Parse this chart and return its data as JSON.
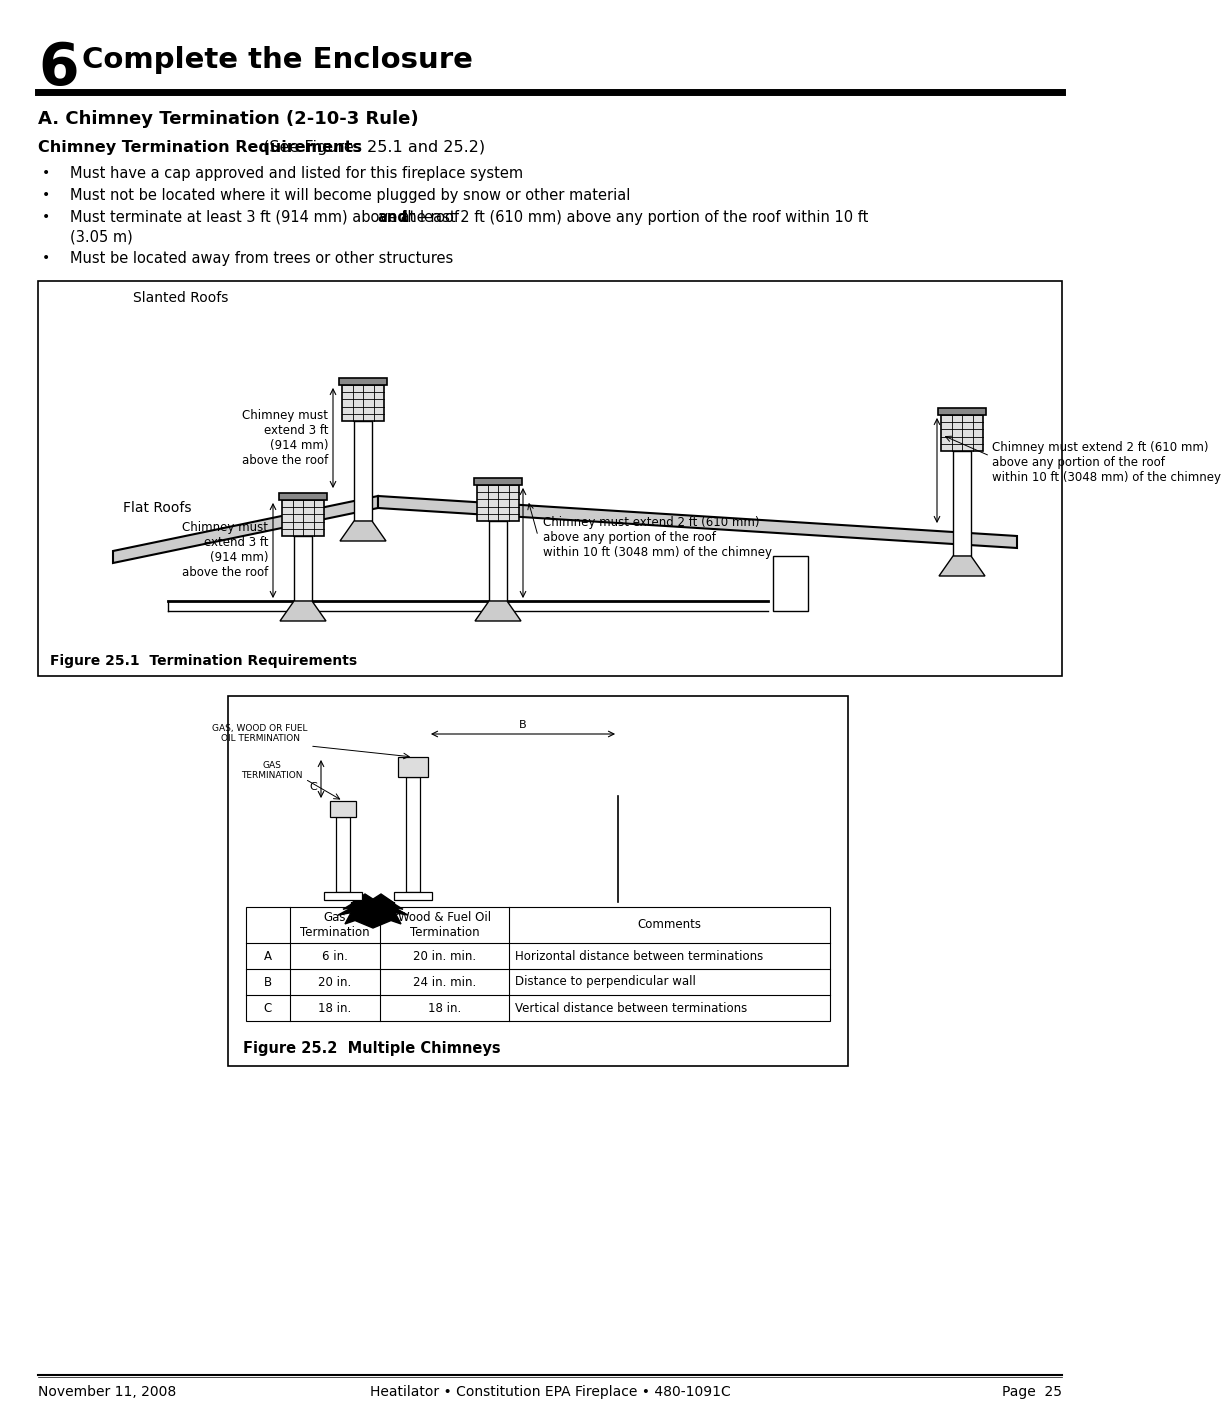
{
  "page_title_number": "6",
  "page_title": "Complete the Enclosure",
  "section_title": "A. Chimney Termination (2-10-3 Rule)",
  "subsection_title_bold": "Chimney Termination Requirements",
  "subsection_title_normal": " (See Figures 25.1 and 25.2)",
  "bullet_points": [
    "Must have a cap approved and listed for this fireplace system",
    "Must not be located where it will become plugged by snow or other material",
    "Must terminate at least 3 ft (914 mm) above the roof  at least 2 ft (610 mm) above any portion of the roof within 10 ft\n(3.05 m)",
    "Must be located away from trees or other structures"
  ],
  "fig1_label": "Slanted Roofs",
  "fig1_caption": "Figure 25.1  Termination Requirements",
  "fig2_caption": "Figure 25.2  Multiple Chimneys",
  "label_chimney_left1": "Chimney must\nextend 3 ft\n(914 mm)\nabove the roof",
  "label_chimney_right1": "Chimney must extend 2 ft (610 mm)\nabove any portion of the roof\nwithin 10 ft (3048 mm) of the chimney",
  "label_flat_roofs": "Flat Roofs",
  "label_chimney_left2": "Chimney must\nextend 3 ft\n(914 mm)\nabove the roof",
  "label_chimney_right2": "Chimney must extend 2 ft (610 mm)\nabove any portion of the roof\nwithin 10 ft (3048 mm) of the chimney",
  "table_headers": [
    "",
    "Gas\nTermination",
    "Wood & Fuel Oil\nTermination",
    "Comments"
  ],
  "table_rows": [
    [
      "A",
      "6 in.",
      "20 in. min.",
      "Horizontal distance between terminations"
    ],
    [
      "B",
      "20 in.",
      "24 in. min.",
      "Distance to perpendicular wall"
    ],
    [
      "C",
      "18 in.",
      "18 in.",
      "Vertical distance between terminations"
    ]
  ],
  "footer_date": "November 11, 2008",
  "footer_center": "Heatilator • Constitution EPA Fireplace • 480-1091C",
  "footer_page": "Page  25",
  "bg_color": "#ffffff"
}
